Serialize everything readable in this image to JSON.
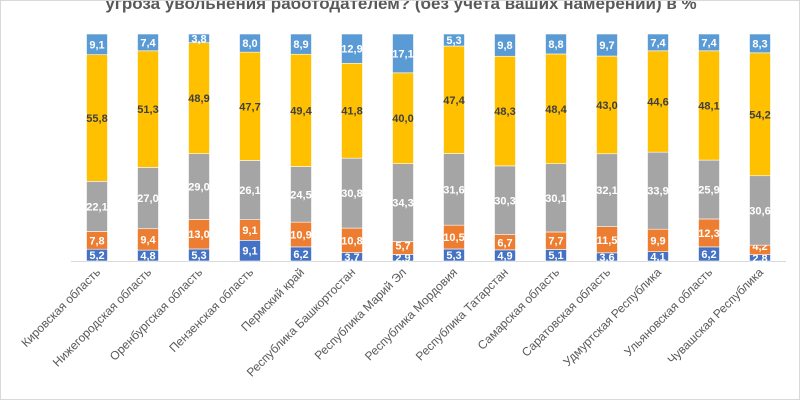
{
  "chart_data": {
    "type": "bar",
    "stacked": true,
    "title": "угроза увольнения работодателем? (без учета ваших намерений) в %",
    "categories": [
      "Кировская область",
      "Нижегородская область",
      "Оренбургская область",
      "Пензенская область",
      "Пермский край",
      "Республика Башкортостан",
      "Республика Марий Эл",
      "Республика Мордовия",
      "Республика Татарстан",
      "Самарская область",
      "Саратовская область",
      "Удмуртская Республика",
      "Ульяновская область",
      "Чувашская Республика"
    ],
    "series": [
      {
        "color": "#4472C4",
        "label_color": "#ffffff",
        "values": [
          5.2,
          4.8,
          5.3,
          9.1,
          6.2,
          3.7,
          2.9,
          5.3,
          4.9,
          5.1,
          3.6,
          4.1,
          6.2,
          2.8
        ]
      },
      {
        "color": "#ED7D31",
        "label_color": "#ffffff",
        "values": [
          7.8,
          9.4,
          13.0,
          9.1,
          10.9,
          10.8,
          5.7,
          10.5,
          6.7,
          7.7,
          11.5,
          9.9,
          12.3,
          4.2
        ]
      },
      {
        "color": "#A5A5A5",
        "label_color": "#ffffff",
        "values": [
          22.1,
          27.0,
          29.0,
          26.1,
          24.5,
          30.8,
          34.3,
          31.6,
          30.3,
          30.1,
          32.1,
          33.9,
          25.9,
          30.6
        ]
      },
      {
        "color": "#FFC000",
        "label_color": "#404040",
        "values": [
          55.8,
          51.3,
          48.9,
          47.7,
          49.4,
          41.8,
          40.0,
          47.4,
          48.3,
          48.4,
          43.0,
          44.6,
          48.1,
          54.2
        ]
      },
      {
        "color": "#5B9BD5",
        "label_color": "#ffffff",
        "values": [
          9.1,
          7.4,
          3.8,
          8.0,
          8.9,
          12.9,
          17.1,
          5.3,
          9.8,
          8.8,
          9.7,
          7.4,
          7.4,
          8.3
        ]
      }
    ],
    "ylim": [
      0,
      100
    ],
    "grid": false,
    "legend": "none"
  }
}
